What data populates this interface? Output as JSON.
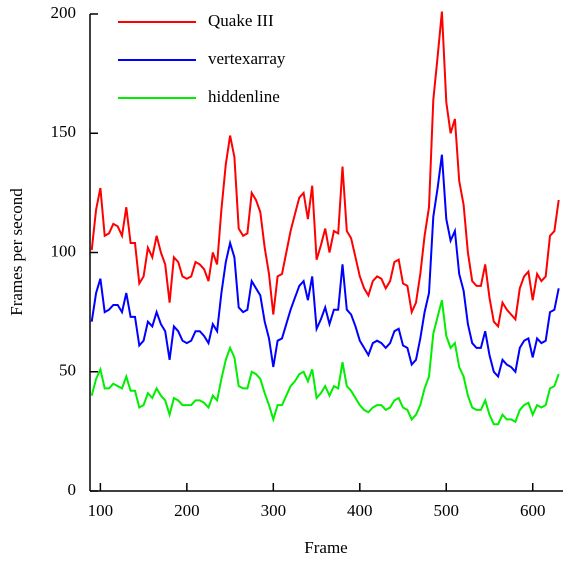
{
  "chart_data": {
    "type": "line",
    "x_label": "Frame",
    "y_label": "Frames per second",
    "xlim": [
      88,
      635
    ],
    "ylim": [
      0,
      200
    ],
    "xticks": [
      100,
      200,
      300,
      400,
      500,
      600
    ],
    "yticks": [
      0,
      50,
      100,
      150,
      200
    ],
    "legend": "upper left",
    "x": [
      90,
      95,
      100,
      105,
      110,
      115,
      120,
      125,
      130,
      135,
      140,
      145,
      150,
      155,
      160,
      165,
      170,
      175,
      180,
      185,
      190,
      195,
      200,
      205,
      210,
      215,
      220,
      225,
      230,
      235,
      240,
      245,
      250,
      255,
      260,
      265,
      270,
      275,
      280,
      285,
      290,
      295,
      300,
      305,
      310,
      315,
      320,
      325,
      330,
      335,
      340,
      345,
      350,
      355,
      360,
      365,
      370,
      375,
      380,
      385,
      390,
      395,
      400,
      405,
      410,
      415,
      420,
      425,
      430,
      435,
      440,
      445,
      450,
      455,
      460,
      465,
      470,
      475,
      480,
      485,
      490,
      495,
      500,
      505,
      510,
      515,
      520,
      525,
      530,
      535,
      540,
      545,
      550,
      555,
      560,
      565,
      570,
      575,
      580,
      585,
      590,
      595,
      600,
      605,
      610,
      615,
      620,
      625,
      630
    ],
    "series": [
      {
        "name": "Quake III",
        "color": "#ff0000",
        "values": [
          101,
          118,
          127,
          107,
          108,
          112,
          111,
          107,
          119,
          104,
          104,
          87,
          90,
          102,
          98,
          107,
          100,
          95,
          79,
          98,
          96,
          90,
          89,
          90,
          96,
          95,
          93,
          88,
          100,
          95,
          118,
          137,
          149,
          140,
          110,
          107,
          108,
          125,
          122,
          117,
          102,
          91,
          74,
          90,
          91,
          100,
          109,
          116,
          123,
          125,
          114,
          128,
          97,
          103,
          110,
          100,
          109,
          108,
          136,
          109,
          106,
          98,
          90,
          85,
          82,
          88,
          90,
          89,
          85,
          88,
          96,
          97,
          87,
          86,
          75,
          79,
          91,
          107,
          119,
          164,
          182,
          201,
          163,
          150,
          156,
          130,
          120,
          100,
          88,
          86,
          86,
          95,
          81,
          71,
          69,
          79,
          76,
          74,
          72,
          85,
          90,
          92,
          80,
          91,
          88,
          90,
          107,
          109,
          122
        ]
      },
      {
        "name": "vertexarray",
        "color": "#0000ff",
        "values": [
          71,
          83,
          89,
          75,
          76,
          78,
          78,
          75,
          83,
          73,
          73,
          61,
          63,
          71,
          69,
          75,
          70,
          67,
          55,
          69,
          67,
          63,
          62,
          63,
          67,
          67,
          65,
          62,
          70,
          67,
          83,
          96,
          104,
          98,
          77,
          75,
          76,
          88,
          85,
          82,
          71,
          64,
          52,
          63,
          64,
          70,
          76,
          81,
          86,
          88,
          80,
          90,
          68,
          72,
          77,
          70,
          76,
          76,
          95,
          76,
          74,
          69,
          63,
          60,
          57,
          62,
          63,
          62,
          60,
          62,
          67,
          68,
          61,
          60,
          53,
          55,
          64,
          75,
          83,
          115,
          127,
          141,
          114,
          105,
          109,
          91,
          84,
          70,
          62,
          60,
          60,
          67,
          57,
          50,
          48,
          55,
          53,
          52,
          50,
          60,
          63,
          64,
          56,
          64,
          62,
          63,
          75,
          76,
          85
        ]
      },
      {
        "name": "hiddenline",
        "color": "#00ee00",
        "values": [
          40,
          47,
          51,
          43,
          43,
          45,
          44,
          43,
          48,
          42,
          42,
          35,
          36,
          41,
          39,
          43,
          40,
          38,
          32,
          39,
          38,
          36,
          36,
          36,
          38,
          38,
          37,
          35,
          40,
          38,
          47,
          55,
          60,
          56,
          44,
          43,
          43,
          50,
          49,
          47,
          41,
          36,
          30,
          36,
          36,
          40,
          44,
          46,
          49,
          50,
          46,
          51,
          39,
          41,
          44,
          40,
          44,
          43,
          54,
          44,
          42,
          39,
          36,
          34,
          33,
          35,
          36,
          36,
          34,
          35,
          38,
          39,
          35,
          34,
          30,
          32,
          36,
          43,
          48,
          66,
          73,
          80,
          65,
          60,
          62,
          52,
          48,
          40,
          35,
          34,
          34,
          38,
          32,
          28,
          28,
          32,
          30,
          30,
          29,
          34,
          36,
          37,
          32,
          36,
          35,
          36,
          43,
          44,
          49
        ]
      }
    ]
  }
}
